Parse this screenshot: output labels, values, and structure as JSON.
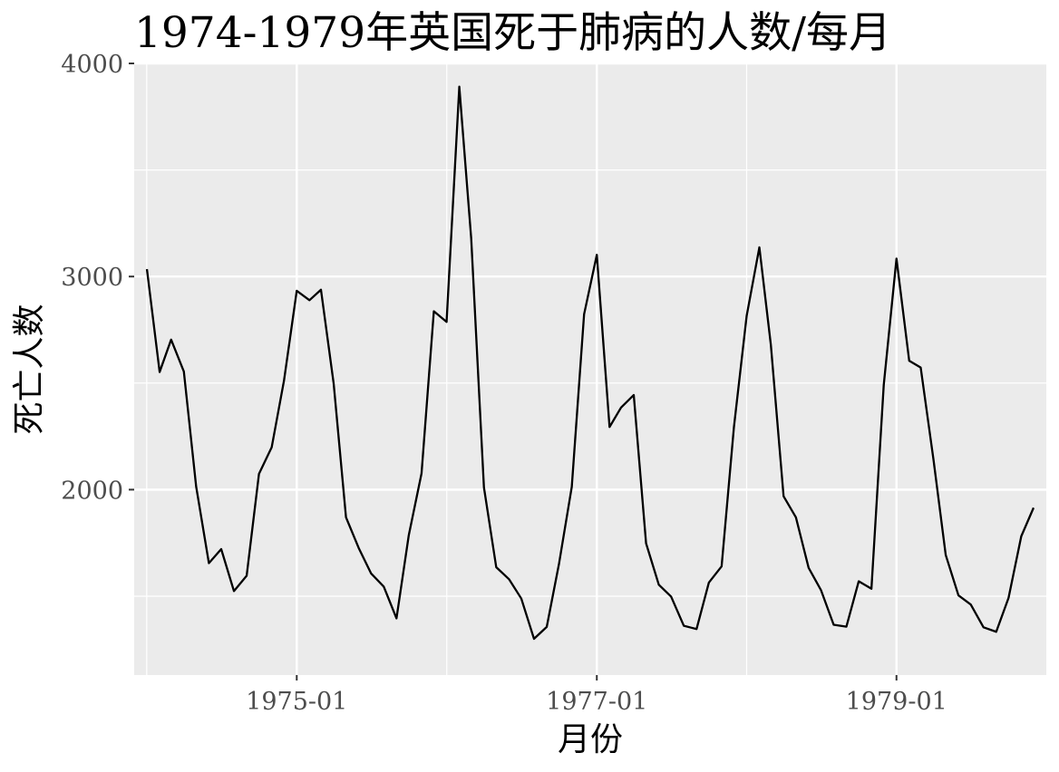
{
  "chart_data": {
    "type": "line",
    "title": "1974-1979年英国死于肺病的人数/每月",
    "xlabel": "月份",
    "ylabel": "死亡人数",
    "x_range": [
      "1973-12-01",
      "1980-01-01"
    ],
    "ylim": [
      1130,
      4000
    ],
    "y_ticks": [
      2000,
      3000,
      4000
    ],
    "x_ticks": [
      {
        "date": "1975-01-01",
        "label": "1975-01"
      },
      {
        "date": "1977-01-01",
        "label": "1977-01"
      },
      {
        "date": "1979-01-01",
        "label": "1979-01"
      }
    ],
    "grid": true,
    "colors": {
      "panel": "#ebebeb",
      "grid": "#ffffff",
      "line": "#000000",
      "tick_text": "#4d4d4d"
    },
    "series": [
      {
        "x": [
          "1974-01",
          "1974-02",
          "1974-03",
          "1974-04",
          "1974-05",
          "1974-06",
          "1974-07",
          "1974-08",
          "1974-09",
          "1974-10",
          "1974-11",
          "1974-12",
          "1975-01",
          "1975-02",
          "1975-03",
          "1975-04",
          "1975-05",
          "1975-06",
          "1975-07",
          "1975-08",
          "1975-09",
          "1975-10",
          "1975-11",
          "1975-12",
          "1976-01",
          "1976-02",
          "1976-03",
          "1976-04",
          "1976-05",
          "1976-06",
          "1976-07",
          "1976-08",
          "1976-09",
          "1976-10",
          "1976-11",
          "1976-12",
          "1977-01",
          "1977-02",
          "1977-03",
          "1977-04",
          "1977-05",
          "1977-06",
          "1977-07",
          "1977-08",
          "1977-09",
          "1977-10",
          "1977-11",
          "1977-12",
          "1978-01",
          "1978-02",
          "1978-03",
          "1978-04",
          "1978-05",
          "1978-06",
          "1978-07",
          "1978-08",
          "1978-09",
          "1978-10",
          "1978-11",
          "1978-12",
          "1979-01",
          "1979-02",
          "1979-03",
          "1979-04",
          "1979-05",
          "1979-06",
          "1979-07",
          "1979-08",
          "1979-09",
          "1979-10",
          "1979-11",
          "1979-12"
        ],
        "values": [
          3035,
          2552,
          2704,
          2554,
          2014,
          1655,
          1721,
          1524,
          1596,
          2074,
          2199,
          2512,
          2933,
          2889,
          2938,
          2497,
          1870,
          1726,
          1607,
          1545,
          1396,
          1787,
          2076,
          2837,
          2787,
          3891,
          3179,
          2011,
          1636,
          1580,
          1489,
          1300,
          1356,
          1653,
          2013,
          2823,
          3102,
          2294,
          2385,
          2444,
          1748,
          1554,
          1498,
          1361,
          1346,
          1564,
          1640,
          2293,
          2815,
          3137,
          2679,
          1969,
          1870,
          1633,
          1529,
          1366,
          1357,
          1570,
          1535,
          2491,
          3084,
          2605,
          2573,
          2143,
          1693,
          1504,
          1461,
          1354,
          1333,
          1492,
          1781,
          1915
        ]
      }
    ]
  }
}
